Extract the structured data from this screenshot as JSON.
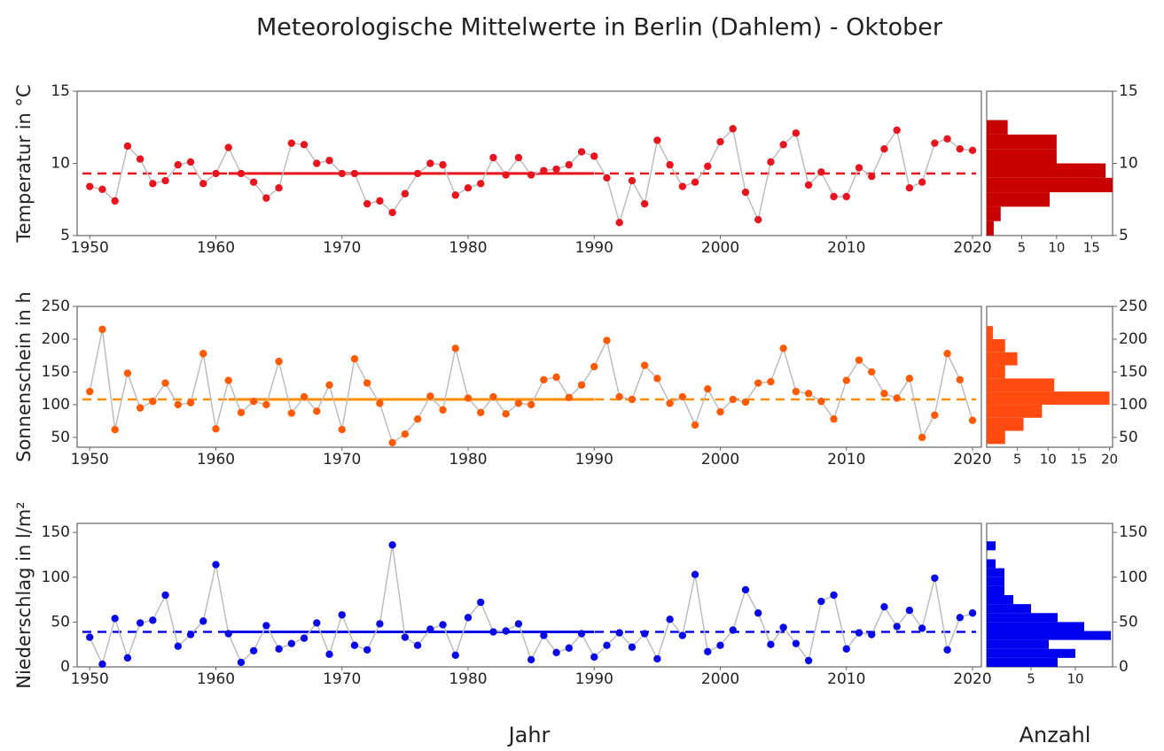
{
  "title": "Meteorologische Mittelwerte in Berlin (Dahlem) - Oktober",
  "x_label": "Jahr",
  "count_label": "Anzahl",
  "chart_data": [
    {
      "type": "line",
      "ylabel": "Temperatur in °C",
      "x": [
        1950,
        1951,
        1952,
        1953,
        1954,
        1955,
        1956,
        1957,
        1958,
        1959,
        1960,
        1961,
        1962,
        1963,
        1964,
        1965,
        1966,
        1967,
        1968,
        1969,
        1970,
        1971,
        1972,
        1973,
        1974,
        1975,
        1976,
        1977,
        1978,
        1979,
        1980,
        1981,
        1982,
        1983,
        1984,
        1985,
        1986,
        1987,
        1988,
        1989,
        1990,
        1991,
        1992,
        1993,
        1994,
        1995,
        1996,
        1997,
        1998,
        1999,
        2000,
        2001,
        2002,
        2003,
        2004,
        2005,
        2006,
        2007,
        2008,
        2009,
        2010,
        2011,
        2012,
        2013,
        2014,
        2015,
        2016,
        2017,
        2018,
        2019,
        2020
      ],
      "series": [
        {
          "color": "#e8141e",
          "line_color": "#bdbdbd",
          "values": [
            8.4,
            8.2,
            7.4,
            11.2,
            10.3,
            8.6,
            8.8,
            9.9,
            10.1,
            8.6,
            9.3,
            11.1,
            9.3,
            8.7,
            7.6,
            8.3,
            11.4,
            11.3,
            10.0,
            10.2,
            9.3,
            9.3,
            7.2,
            7.4,
            6.6,
            7.9,
            9.3,
            10.0,
            9.9,
            7.8,
            8.3,
            8.6,
            10.4,
            9.2,
            10.4,
            9.2,
            9.5,
            9.6,
            9.9,
            10.8,
            10.5,
            9.0,
            5.9,
            8.8,
            7.2,
            11.6,
            9.9,
            8.4,
            8.7,
            9.8,
            11.5,
            12.4,
            8.0,
            6.1,
            10.1,
            11.3,
            12.1,
            8.5,
            9.4,
            7.7,
            7.7,
            9.7,
            9.1,
            11.0,
            12.3,
            8.3,
            8.7,
            11.4,
            11.7,
            11.0,
            10.9
          ]
        }
      ],
      "mean": 9.3,
      "mean_period": [
        1961,
        1990
      ],
      "mean_color": "#e8141e",
      "xlim": [
        1949,
        2020.7
      ],
      "xticks": [
        1950,
        1960,
        1970,
        1980,
        1990,
        2000,
        2010,
        2020
      ],
      "ylim": [
        5,
        15
      ],
      "yticks": [
        5,
        10,
        15
      ]
    },
    {
      "type": "histogram",
      "orientation": "horizontal",
      "color": "#c80000",
      "bins": [
        5,
        6,
        7,
        8,
        9,
        10,
        11,
        12,
        13
      ],
      "counts": [
        1,
        2,
        9,
        18,
        17,
        10,
        10,
        3
      ],
      "xlim": [
        0,
        18
      ],
      "xticks": [
        5,
        10,
        15
      ],
      "ylim": [
        5,
        15
      ],
      "yticks": [
        5,
        10,
        15
      ]
    },
    {
      "type": "line",
      "ylabel": "Sonnenschein in h",
      "x": [
        1950,
        1951,
        1952,
        1953,
        1954,
        1955,
        1956,
        1957,
        1958,
        1959,
        1960,
        1961,
        1962,
        1963,
        1964,
        1965,
        1966,
        1967,
        1968,
        1969,
        1970,
        1971,
        1972,
        1973,
        1974,
        1975,
        1976,
        1977,
        1978,
        1979,
        1980,
        1981,
        1982,
        1983,
        1984,
        1985,
        1986,
        1987,
        1988,
        1989,
        1990,
        1991,
        1992,
        1993,
        1994,
        1995,
        1996,
        1997,
        1998,
        1999,
        2000,
        2001,
        2002,
        2003,
        2004,
        2005,
        2006,
        2007,
        2008,
        2009,
        2010,
        2011,
        2012,
        2013,
        2014,
        2015,
        2016,
        2017,
        2018,
        2019,
        2020
      ],
      "series": [
        {
          "color": "#ff5a00",
          "line_color": "#bdbdbd",
          "values": [
            120,
            215,
            62,
            148,
            95,
            105,
            133,
            100,
            103,
            178,
            63,
            137,
            88,
            105,
            100,
            166,
            87,
            112,
            90,
            130,
            62,
            170,
            133,
            102,
            42,
            55,
            78,
            113,
            92,
            186,
            110,
            88,
            112,
            86,
            102,
            100,
            138,
            142,
            111,
            130,
            158,
            198,
            112,
            108,
            160,
            140,
            102,
            112,
            69,
            124,
            89,
            108,
            104,
            133,
            135,
            186,
            120,
            117,
            105,
            78,
            137,
            168,
            150,
            117,
            110,
            140,
            50,
            84,
            178,
            138,
            76
          ]
        }
      ],
      "mean": 108,
      "mean_period": [
        1961,
        1990
      ],
      "mean_color": "#ff8c00",
      "xlim": [
        1949,
        2020.7
      ],
      "xticks": [
        1950,
        1960,
        1970,
        1980,
        1990,
        2000,
        2010,
        2020
      ],
      "ylim": [
        35,
        250
      ],
      "yticks": [
        50,
        100,
        150,
        200,
        250
      ]
    },
    {
      "type": "histogram",
      "orientation": "horizontal",
      "color": "#ff4a10",
      "bins": [
        40,
        60,
        80,
        100,
        120,
        140,
        160,
        180,
        200,
        220
      ],
      "counts": [
        3,
        6,
        9,
        20,
        11,
        3,
        5,
        3,
        1
      ],
      "xlim": [
        0,
        20.5
      ],
      "xticks": [
        5,
        10,
        15,
        20
      ],
      "ylim": [
        35,
        250
      ],
      "yticks": [
        50,
        100,
        150,
        200,
        250
      ]
    },
    {
      "type": "line",
      "ylabel": "Niederschlag in l/m²",
      "x": [
        1950,
        1951,
        1952,
        1953,
        1954,
        1955,
        1956,
        1957,
        1958,
        1959,
        1960,
        1961,
        1962,
        1963,
        1964,
        1965,
        1966,
        1967,
        1968,
        1969,
        1970,
        1971,
        1972,
        1973,
        1974,
        1975,
        1976,
        1977,
        1978,
        1979,
        1980,
        1981,
        1982,
        1983,
        1984,
        1985,
        1986,
        1987,
        1988,
        1989,
        1990,
        1991,
        1992,
        1993,
        1994,
        1995,
        1996,
        1997,
        1998,
        1999,
        2000,
        2001,
        2002,
        2003,
        2004,
        2005,
        2006,
        2007,
        2008,
        2009,
        2010,
        2011,
        2012,
        2013,
        2014,
        2015,
        2016,
        2017,
        2018,
        2019,
        2020
      ],
      "series": [
        {
          "color": "#0a0ae6",
          "line_color": "#bdbdbd",
          "values": [
            33,
            3,
            54,
            10,
            49,
            52,
            80,
            23,
            36,
            51,
            114,
            37,
            5,
            18,
            46,
            20,
            26,
            32,
            49,
            14,
            58,
            24,
            19,
            48,
            136,
            33,
            24,
            42,
            47,
            13,
            55,
            72,
            39,
            40,
            48,
            8,
            35,
            16,
            21,
            37,
            11,
            24,
            38,
            22,
            37,
            9,
            53,
            35,
            103,
            17,
            24,
            41,
            86,
            60,
            25,
            44,
            26,
            7,
            73,
            80,
            20,
            38,
            36,
            67,
            45,
            63,
            43,
            99,
            19,
            55,
            60
          ]
        }
      ],
      "mean": 39,
      "mean_period": [
        1961,
        1990
      ],
      "mean_color": "#0a0ae6",
      "xlim": [
        1949,
        2020.7
      ],
      "xticks": [
        1950,
        1960,
        1970,
        1980,
        1990,
        2000,
        2010,
        2020
      ],
      "ylim": [
        0,
        160
      ],
      "yticks": [
        0,
        50,
        100,
        150
      ]
    },
    {
      "type": "histogram",
      "orientation": "horizontal",
      "color": "#0000f0",
      "bins": [
        0,
        10,
        20,
        30,
        40,
        50,
        60,
        70,
        80,
        90,
        100,
        110,
        120,
        130,
        140
      ],
      "counts": [
        8,
        10,
        7,
        14,
        11,
        8,
        5,
        3,
        2,
        2,
        2,
        1,
        0,
        1
      ],
      "xlim": [
        0,
        14.2
      ],
      "xticks": [
        5,
        10
      ],
      "ylim": [
        0,
        160
      ],
      "yticks": [
        0,
        50,
        100,
        150
      ]
    }
  ]
}
